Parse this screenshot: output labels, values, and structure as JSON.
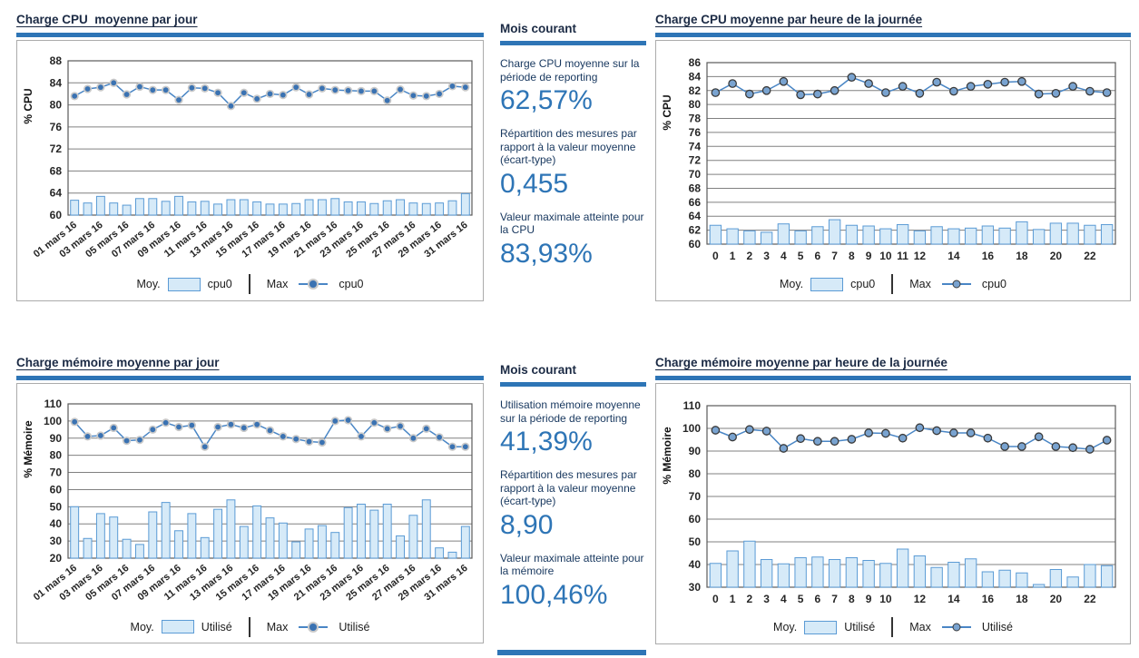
{
  "colors": {
    "accent_bar": "#2E75B6",
    "heading_text": "#1B2A44",
    "stat_label_text": "#17375E",
    "stat_value_text": "#2E75B6",
    "bar_fill": "#D6EAF8",
    "bar_stroke": "#5B9BD5",
    "line": "#4A86C5",
    "marker_day": "#3A72B2",
    "marker_halo": "#C9C9C9",
    "marker_hour_fill": "#79A3D0",
    "marker_hour_stroke": "#3A3A3A",
    "grid": "#808080"
  },
  "stats": [
    {
      "header": "Mois courant",
      "items": [
        {
          "label": "Charge CPU moyenne sur la période de reporting",
          "value": "62,57%"
        },
        {
          "label": "Répartition des mesures par rapport à la valeur moyenne (écart-type)",
          "value": "0,455"
        },
        {
          "label": "Valeur maximale atteinte pour la CPU",
          "value": "83,93%"
        }
      ]
    },
    {
      "header": "Mois courant",
      "items": [
        {
          "label": "Utilisation mémoire moyenne sur la période de reporting",
          "value": "41,39%"
        },
        {
          "label": "Répartition des mesures par rapport à la valeur moyenne (écart-type)",
          "value": "8,90"
        },
        {
          "label": "Valeur maximale atteinte pour la mémoire",
          "value": "100,46%"
        }
      ]
    }
  ],
  "chart_data": [
    {
      "type": "bar+line",
      "title": "Charge CPU  moyenne par jour",
      "ylabel": "% CPU",
      "ylim": [
        60,
        88
      ],
      "ystep": 4,
      "grid": true,
      "marker": "halo",
      "legend": {
        "moy_label": "Moy.",
        "moy_series": "cpu0",
        "max_label": "Max",
        "max_series": "cpu0"
      },
      "categories": [
        "01 mars 16",
        "02 mars 16",
        "03 mars 16",
        "04 mars 16",
        "05 mars 16",
        "06 mars 16",
        "07 mars 16",
        "08 mars 16",
        "09 mars 16",
        "10 mars 16",
        "11 mars 16",
        "12 mars 16",
        "13 mars 16",
        "14 mars 16",
        "15 mars 16",
        "16 mars 16",
        "17 mars 16",
        "18 mars 16",
        "19 mars 16",
        "20 mars 16",
        "21 mars 16",
        "22 mars 16",
        "23 mars 16",
        "24 mars 16",
        "25 mars 16",
        "26 mars 16",
        "27 mars 16",
        "28 mars 16",
        "29 mars 16",
        "30 mars 16",
        "31 mars 16"
      ],
      "labeled": [
        0,
        2,
        4,
        6,
        8,
        10,
        12,
        14,
        16,
        18,
        20,
        22,
        24,
        26,
        28,
        30
      ],
      "series": [
        {
          "name": "cpu0",
          "role": "Moy.",
          "kind": "bar",
          "values": [
            62.7,
            62.2,
            63.4,
            62.2,
            61.8,
            63.0,
            63.0,
            62.5,
            63.4,
            62.4,
            62.5,
            62.0,
            62.8,
            62.8,
            62.4,
            62.0,
            62.0,
            62.1,
            62.8,
            62.8,
            63.0,
            62.4,
            62.4,
            62.1,
            62.6,
            62.8,
            62.2,
            62.1,
            62.2,
            62.6,
            63.9
          ]
        },
        {
          "name": "cpu0",
          "role": "Max",
          "kind": "line",
          "values": [
            81.6,
            82.9,
            83.2,
            84.0,
            81.9,
            83.3,
            82.7,
            82.7,
            80.9,
            83.1,
            83.0,
            82.2,
            79.8,
            82.2,
            81.1,
            82.0,
            81.8,
            83.2,
            81.9,
            83.0,
            82.7,
            82.6,
            82.5,
            82.5,
            80.8,
            82.8,
            81.7,
            81.6,
            82.0,
            83.4,
            83.2
          ]
        }
      ]
    },
    {
      "type": "bar+line",
      "title": "Charge CPU moyenne par heure de la journée",
      "ylabel": "% CPU",
      "ylim": [
        60,
        86
      ],
      "ystep": 2,
      "grid": true,
      "marker": "outline",
      "legend": {
        "moy_label": "Moy.",
        "moy_series": "cpu0",
        "max_label": "Max",
        "max_series": "cpu0"
      },
      "categories": [
        "0",
        "1",
        "2",
        "3",
        "4",
        "5",
        "6",
        "7",
        "8",
        "9",
        "10",
        "11",
        "12",
        "13",
        "14",
        "15",
        "16",
        "17",
        "18",
        "19",
        "20",
        "21",
        "22",
        "23"
      ],
      "labeled": [
        0,
        1,
        2,
        3,
        4,
        5,
        6,
        7,
        8,
        9,
        10,
        11,
        12,
        14,
        16,
        18,
        20,
        22
      ],
      "series": [
        {
          "name": "cpu0",
          "role": "Moy.",
          "kind": "bar",
          "values": [
            62.7,
            62.2,
            61.9,
            61.7,
            62.9,
            61.9,
            62.5,
            63.5,
            62.7,
            62.6,
            62.2,
            62.8,
            61.9,
            62.5,
            62.2,
            62.3,
            62.6,
            62.3,
            63.2,
            62.1,
            63.0,
            63.0,
            62.7,
            62.8
          ]
        },
        {
          "name": "cpu0",
          "role": "Max",
          "kind": "line",
          "values": [
            81.7,
            83.0,
            81.5,
            82.0,
            83.3,
            81.4,
            81.5,
            82.0,
            83.9,
            83.0,
            81.7,
            82.6,
            81.6,
            83.2,
            81.9,
            82.6,
            82.9,
            83.2,
            83.3,
            81.5,
            81.6,
            82.6,
            81.9,
            81.7
          ]
        }
      ]
    },
    {
      "type": "bar+line",
      "title": "Charge mémoire moyenne par jour",
      "ylabel": "% Mémoire",
      "ylim": [
        20,
        110
      ],
      "ystep": 10,
      "grid": true,
      "marker": "halo",
      "legend": {
        "moy_label": "Moy.",
        "moy_series": "Utilisé",
        "max_label": "Max",
        "max_series": "Utilisé"
      },
      "categories": [
        "01 mars 16",
        "02 mars 16",
        "03 mars 16",
        "04 mars 16",
        "05 mars 16",
        "06 mars 16",
        "07 mars 16",
        "08 mars 16",
        "09 mars 16",
        "10 mars 16",
        "11 mars 16",
        "12 mars 16",
        "13 mars 16",
        "14 mars 16",
        "15 mars 16",
        "16 mars 16",
        "17 mars 16",
        "18 mars 16",
        "19 mars 16",
        "20 mars 16",
        "21 mars 16",
        "22 mars 16",
        "23 mars 16",
        "24 mars 16",
        "25 mars 16",
        "26 mars 16",
        "27 mars 16",
        "28 mars 16",
        "29 mars 16",
        "30 mars 16",
        "31 mars 16"
      ],
      "labeled": [
        0,
        2,
        4,
        6,
        8,
        10,
        12,
        14,
        16,
        18,
        20,
        22,
        24,
        26,
        28,
        30
      ],
      "series": [
        {
          "name": "Utilisé",
          "role": "Moy.",
          "kind": "bar",
          "values": [
            50.0,
            31.5,
            46.0,
            44.0,
            31.0,
            28.0,
            47.0,
            52.5,
            36.0,
            46.0,
            32.0,
            48.5,
            54.0,
            38.5,
            50.5,
            43.5,
            40.5,
            29.5,
            37.0,
            39.0,
            35.0,
            49.5,
            51.5,
            48.0,
            51.5,
            33.0,
            45.0,
            54.0,
            26.0,
            23.5,
            38.5
          ]
        },
        {
          "name": "Utilisé",
          "role": "Max",
          "kind": "line",
          "values": [
            99.5,
            91.0,
            91.5,
            96.0,
            88.5,
            89.0,
            95.0,
            99.0,
            96.5,
            97.5,
            85.0,
            96.5,
            98.0,
            96.0,
            98.0,
            94.5,
            91.0,
            89.5,
            88.0,
            87.5,
            100.0,
            100.5,
            91.0,
            99.0,
            95.5,
            97.0,
            90.0,
            95.5,
            90.5,
            85.0,
            85.0
          ]
        }
      ]
    },
    {
      "type": "bar+line",
      "title": "Charge mémoire moyenne par heure de la journée",
      "ylabel": "% Mémoire",
      "ylim": [
        30,
        110
      ],
      "ystep": 10,
      "grid": true,
      "marker": "outline",
      "legend": {
        "moy_label": "Moy.",
        "moy_series": "Utilisé",
        "max_label": "Max",
        "max_series": "Utilisé"
      },
      "categories": [
        "0",
        "1",
        "2",
        "3",
        "4",
        "5",
        "6",
        "7",
        "8",
        "9",
        "10",
        "11",
        "12",
        "13",
        "14",
        "15",
        "16",
        "17",
        "18",
        "19",
        "20",
        "21",
        "22",
        "23"
      ],
      "labeled": [
        0,
        1,
        2,
        3,
        4,
        5,
        6,
        7,
        8,
        9,
        10,
        12,
        14,
        16,
        18,
        20,
        22
      ],
      "series": [
        {
          "name": "Utilisé",
          "role": "Moy.",
          "kind": "bar",
          "values": [
            40.5,
            46.0,
            50.3,
            42.2,
            40.3,
            43.0,
            43.3,
            42.2,
            43.0,
            41.8,
            40.5,
            46.8,
            43.8,
            38.7,
            41.0,
            42.5,
            36.8,
            37.5,
            36.3,
            31.2,
            37.8,
            34.5,
            40.0,
            39.5
          ]
        },
        {
          "name": "Utilisé",
          "role": "Max",
          "kind": "line",
          "values": [
            99.2,
            96.2,
            99.5,
            98.8,
            91.2,
            95.5,
            94.3,
            94.3,
            95.2,
            98.0,
            97.8,
            95.7,
            100.3,
            99.0,
            98.0,
            98.0,
            95.7,
            92.0,
            92.0,
            96.3,
            92.0,
            91.5,
            90.8,
            94.8
          ]
        }
      ]
    }
  ]
}
